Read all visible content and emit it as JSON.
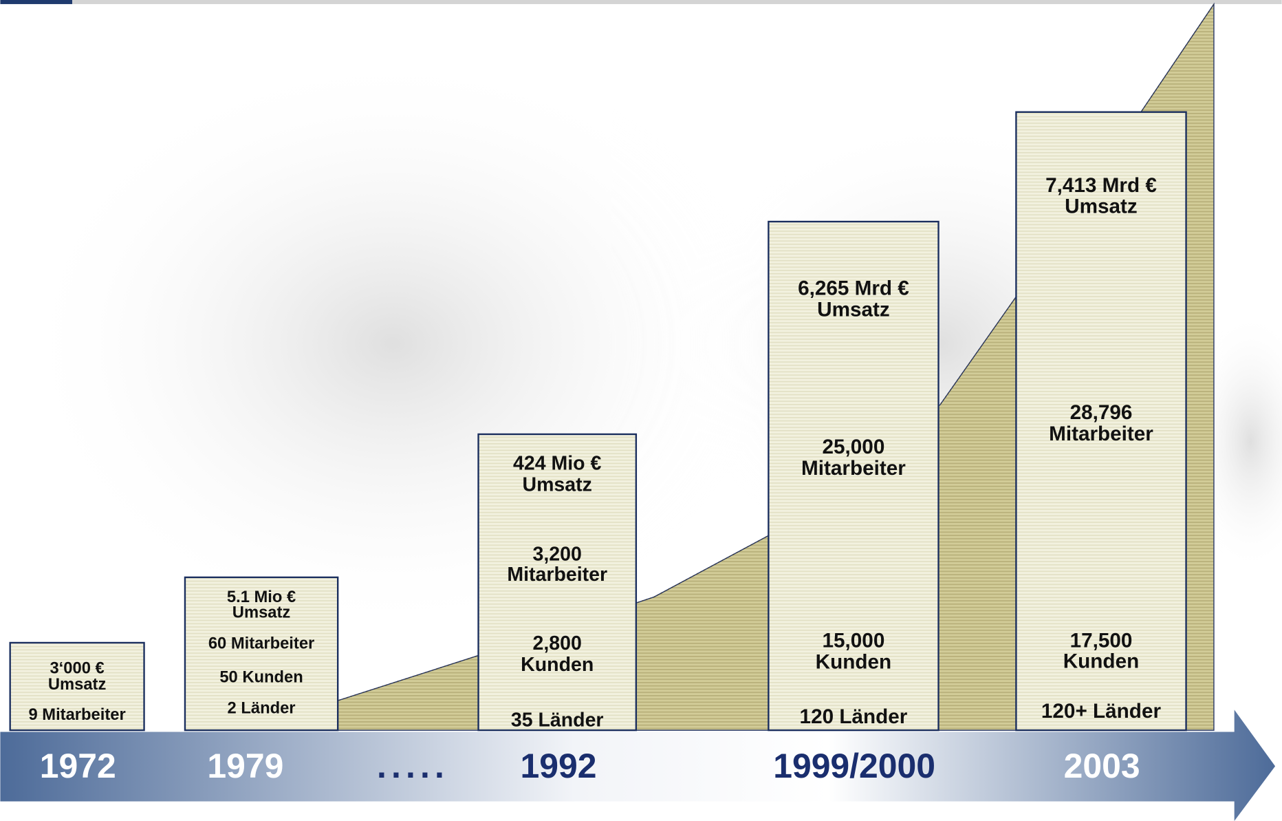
{
  "timeline": {
    "years": [
      "1972",
      "1979",
      ".....",
      "1992",
      "1999/2000",
      "2003"
    ],
    "boxes": [
      {
        "lines": [
          "3‘000 €",
          "Umsatz",
          "9 Mitarbeiter"
        ]
      },
      {
        "lines": [
          "5.1 Mio €",
          "Umsatz",
          "60 Mitarbeiter",
          "50 Kunden",
          "2 Länder"
        ]
      },
      {
        "lines": [
          "424 Mio €",
          "Umsatz",
          "3,200",
          "Mitarbeiter",
          "2,800",
          "Kunden",
          "35 Länder"
        ]
      },
      {
        "lines": [
          "6,265 Mrd €",
          "Umsatz",
          "25,000",
          "Mitarbeiter",
          "15,000",
          "Kunden",
          "120 Länder"
        ]
      },
      {
        "lines": [
          "7,413 Mrd €",
          "Umsatz",
          "28,796",
          "Mitarbeiter",
          "17,500",
          "Kunden",
          "120+ Länder"
        ]
      }
    ]
  }
}
